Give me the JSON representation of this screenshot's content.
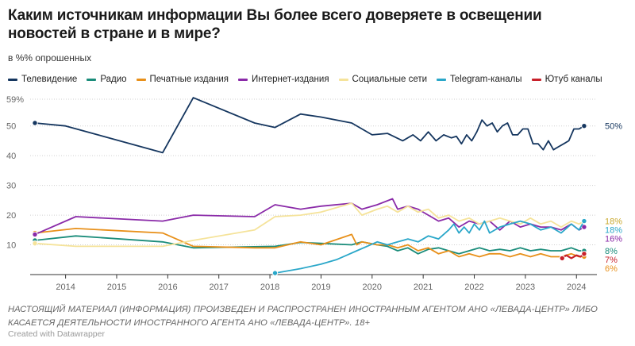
{
  "title": "Каким источникам информации Вы более всего доверяете в освещении новостей в стране и в мире?",
  "subtitle": "в %% опрошенных",
  "note": "НАСТОЯЩИЙ МАТЕРИАЛ (ИНФОРМАЦИЯ) ПРОИЗВЕДЕН И РАСПРОСТРАНЕН ИНОСТРАННЫМ АГЕНТОМ АНО «ЛЕВАДА-ЦЕНТР» ЛИБО КАСАЕТСЯ ДЕЯТЕЛЬНОСТИ ИНОСТРАННОГО АГЕНТА АНО «ЛЕВАДА-ЦЕНТР». 18+",
  "credit": "Created with Datawrapper",
  "chart_data": {
    "type": "line",
    "title": "Каким источникам информации Вы более всего доверяете в освещении новостей в стране и в мире?",
    "subtitle": "в %% опрошенных",
    "x_ticks": [
      "2014",
      "2015",
      "2016",
      "2017",
      "2018",
      "2019",
      "2020",
      "2021",
      "2022",
      "2023",
      "2024"
    ],
    "y_ticks": [
      "59%",
      "50",
      "40",
      "30",
      "20",
      "10"
    ],
    "y_tick_values": [
      59,
      50,
      40,
      30,
      20,
      10
    ],
    "xlim": [
      2013.4,
      2024.4
    ],
    "ylim": [
      0,
      59
    ],
    "grid": "horizontal dotted",
    "legend_position": "top",
    "series": [
      {
        "name": "Телевидение",
        "color": "#15365f",
        "end_label": "50%",
        "points": [
          [
            2013.4,
            51
          ],
          [
            2014.0,
            50
          ],
          [
            2015.9,
            41
          ],
          [
            2016.5,
            59.5
          ],
          [
            2017.7,
            51
          ],
          [
            2018.1,
            49.5
          ],
          [
            2018.6,
            54
          ],
          [
            2019.0,
            53
          ],
          [
            2019.6,
            51
          ],
          [
            2020.0,
            47
          ],
          [
            2020.3,
            47.5
          ],
          [
            2020.6,
            45
          ],
          [
            2020.8,
            47
          ],
          [
            2020.95,
            45
          ],
          [
            2021.1,
            48
          ],
          [
            2021.25,
            45
          ],
          [
            2021.4,
            47
          ],
          [
            2021.55,
            46
          ],
          [
            2021.65,
            46.5
          ],
          [
            2021.75,
            44
          ],
          [
            2021.85,
            47
          ],
          [
            2021.95,
            45
          ],
          [
            2022.05,
            48
          ],
          [
            2022.15,
            52
          ],
          [
            2022.25,
            50
          ],
          [
            2022.35,
            51
          ],
          [
            2022.45,
            48
          ],
          [
            2022.55,
            50
          ],
          [
            2022.65,
            51
          ],
          [
            2022.75,
            47
          ],
          [
            2022.85,
            47
          ],
          [
            2022.95,
            49
          ],
          [
            2023.05,
            49
          ],
          [
            2023.15,
            44
          ],
          [
            2023.25,
            44
          ],
          [
            2023.35,
            42
          ],
          [
            2023.45,
            45
          ],
          [
            2023.55,
            42
          ],
          [
            2023.65,
            43
          ],
          [
            2023.75,
            44
          ],
          [
            2023.85,
            45
          ],
          [
            2023.95,
            49
          ],
          [
            2024.05,
            49
          ],
          [
            2024.15,
            50
          ]
        ]
      },
      {
        "name": "Радио",
        "color": "#1a8c7a",
        "end_label": "8%",
        "points": [
          [
            2013.4,
            11.5
          ],
          [
            2014.2,
            13
          ],
          [
            2015.9,
            11
          ],
          [
            2016.5,
            9
          ],
          [
            2018.1,
            9.5
          ],
          [
            2018.6,
            10.8
          ],
          [
            2019.0,
            10.5
          ],
          [
            2019.6,
            10
          ],
          [
            2019.8,
            11
          ],
          [
            2020.1,
            10
          ],
          [
            2020.3,
            9.5
          ],
          [
            2020.5,
            8
          ],
          [
            2020.7,
            9
          ],
          [
            2020.9,
            7
          ],
          [
            2021.1,
            8.5
          ],
          [
            2021.3,
            9
          ],
          [
            2021.5,
            8
          ],
          [
            2021.7,
            7
          ],
          [
            2021.9,
            8
          ],
          [
            2022.1,
            9
          ],
          [
            2022.3,
            8
          ],
          [
            2022.5,
            8.5
          ],
          [
            2022.7,
            8
          ],
          [
            2022.9,
            9
          ],
          [
            2023.1,
            8
          ],
          [
            2023.3,
            8.5
          ],
          [
            2023.5,
            8
          ],
          [
            2023.7,
            8
          ],
          [
            2023.9,
            9
          ],
          [
            2024.05,
            8
          ],
          [
            2024.15,
            8
          ]
        ]
      },
      {
        "name": "Печатные издания",
        "color": "#e8901a",
        "end_label": "6%",
        "points": [
          [
            2013.4,
            14
          ],
          [
            2014.2,
            15.5
          ],
          [
            2015.9,
            14
          ],
          [
            2016.5,
            9.5
          ],
          [
            2017.7,
            9
          ],
          [
            2018.1,
            9
          ],
          [
            2018.6,
            11
          ],
          [
            2019.0,
            10
          ],
          [
            2019.6,
            13.5
          ],
          [
            2019.7,
            10
          ],
          [
            2019.8,
            11
          ],
          [
            2020.1,
            10
          ],
          [
            2020.3,
            10
          ],
          [
            2020.5,
            9
          ],
          [
            2020.7,
            10
          ],
          [
            2020.9,
            8
          ],
          [
            2021.1,
            9
          ],
          [
            2021.3,
            7
          ],
          [
            2021.5,
            8
          ],
          [
            2021.7,
            6
          ],
          [
            2021.9,
            7
          ],
          [
            2022.1,
            6
          ],
          [
            2022.3,
            7
          ],
          [
            2022.5,
            7
          ],
          [
            2022.7,
            6
          ],
          [
            2022.9,
            7
          ],
          [
            2023.1,
            6
          ],
          [
            2023.3,
            7
          ],
          [
            2023.5,
            6
          ],
          [
            2023.7,
            6
          ],
          [
            2023.9,
            7
          ],
          [
            2024.05,
            6
          ],
          [
            2024.15,
            6
          ]
        ]
      },
      {
        "name": "Интернет-издания",
        "color": "#8a2aa8",
        "end_label": "16%",
        "points": [
          [
            2013.4,
            13.5
          ],
          [
            2014.2,
            19.5
          ],
          [
            2015.9,
            18
          ],
          [
            2016.5,
            20
          ],
          [
            2017.7,
            19.5
          ],
          [
            2018.1,
            23.5
          ],
          [
            2018.6,
            22
          ],
          [
            2019.0,
            23
          ],
          [
            2019.6,
            24
          ],
          [
            2019.8,
            22
          ],
          [
            2020.1,
            23.5
          ],
          [
            2020.4,
            25.5
          ],
          [
            2020.5,
            22
          ],
          [
            2020.7,
            23
          ],
          [
            2020.9,
            22
          ],
          [
            2021.1,
            20
          ],
          [
            2021.3,
            18
          ],
          [
            2021.5,
            19
          ],
          [
            2021.7,
            16
          ],
          [
            2021.9,
            18
          ],
          [
            2022.1,
            17
          ],
          [
            2022.3,
            18
          ],
          [
            2022.5,
            15
          ],
          [
            2022.7,
            18
          ],
          [
            2022.9,
            16
          ],
          [
            2023.1,
            17
          ],
          [
            2023.3,
            16
          ],
          [
            2023.5,
            16
          ],
          [
            2023.7,
            15
          ],
          [
            2023.9,
            17
          ],
          [
            2024.05,
            15
          ],
          [
            2024.15,
            16
          ]
        ]
      },
      {
        "name": "Социальные сети",
        "color": "#f5e39a",
        "end_label": "18%",
        "points": [
          [
            2013.4,
            10.5
          ],
          [
            2014.2,
            9.5
          ],
          [
            2015.9,
            9.5
          ],
          [
            2016.5,
            11.5
          ],
          [
            2017.7,
            15
          ],
          [
            2018.1,
            19.5
          ],
          [
            2018.6,
            20
          ],
          [
            2019.0,
            21
          ],
          [
            2019.6,
            24
          ],
          [
            2019.8,
            20
          ],
          [
            2020.1,
            22
          ],
          [
            2020.3,
            23
          ],
          [
            2020.5,
            21
          ],
          [
            2020.7,
            23
          ],
          [
            2020.9,
            21
          ],
          [
            2021.1,
            22
          ],
          [
            2021.3,
            19
          ],
          [
            2021.5,
            20
          ],
          [
            2021.7,
            18
          ],
          [
            2021.9,
            19
          ],
          [
            2022.1,
            17
          ],
          [
            2022.3,
            18
          ],
          [
            2022.5,
            19
          ],
          [
            2022.7,
            18
          ],
          [
            2022.9,
            17
          ],
          [
            2023.1,
            19
          ],
          [
            2023.3,
            17
          ],
          [
            2023.5,
            18
          ],
          [
            2023.7,
            16
          ],
          [
            2023.9,
            18
          ],
          [
            2024.05,
            17
          ],
          [
            2024.15,
            18
          ]
        ]
      },
      {
        "name": "Telegram-каналы",
        "color": "#2aa7c9",
        "end_label": "18%",
        "points": [
          [
            2018.1,
            0.5
          ],
          [
            2018.6,
            2
          ],
          [
            2019.0,
            3.5
          ],
          [
            2019.3,
            5
          ],
          [
            2019.5,
            6.5
          ],
          [
            2019.7,
            8
          ],
          [
            2019.9,
            9.5
          ],
          [
            2020.1,
            11
          ],
          [
            2020.3,
            10
          ],
          [
            2020.5,
            11
          ],
          [
            2020.7,
            12
          ],
          [
            2020.9,
            11
          ],
          [
            2021.1,
            13
          ],
          [
            2021.3,
            12
          ],
          [
            2021.5,
            15
          ],
          [
            2021.6,
            17
          ],
          [
            2021.7,
            14
          ],
          [
            2021.8,
            16
          ],
          [
            2021.9,
            14
          ],
          [
            2022.0,
            17
          ],
          [
            2022.1,
            15
          ],
          [
            2022.2,
            18
          ],
          [
            2022.3,
            14
          ],
          [
            2022.5,
            16
          ],
          [
            2022.7,
            17
          ],
          [
            2022.9,
            18
          ],
          [
            2023.1,
            17
          ],
          [
            2023.3,
            15
          ],
          [
            2023.5,
            16
          ],
          [
            2023.7,
            14
          ],
          [
            2023.9,
            17
          ],
          [
            2024.05,
            15
          ],
          [
            2024.15,
            18
          ]
        ]
      },
      {
        "name": "Ютуб каналы",
        "color": "#c8202a",
        "end_label": "7%",
        "points": [
          [
            2023.72,
            5.5
          ],
          [
            2023.8,
            6.5
          ],
          [
            2023.9,
            5.5
          ],
          [
            2024.0,
            6.5
          ],
          [
            2024.08,
            6
          ],
          [
            2024.15,
            7
          ]
        ]
      }
    ]
  }
}
